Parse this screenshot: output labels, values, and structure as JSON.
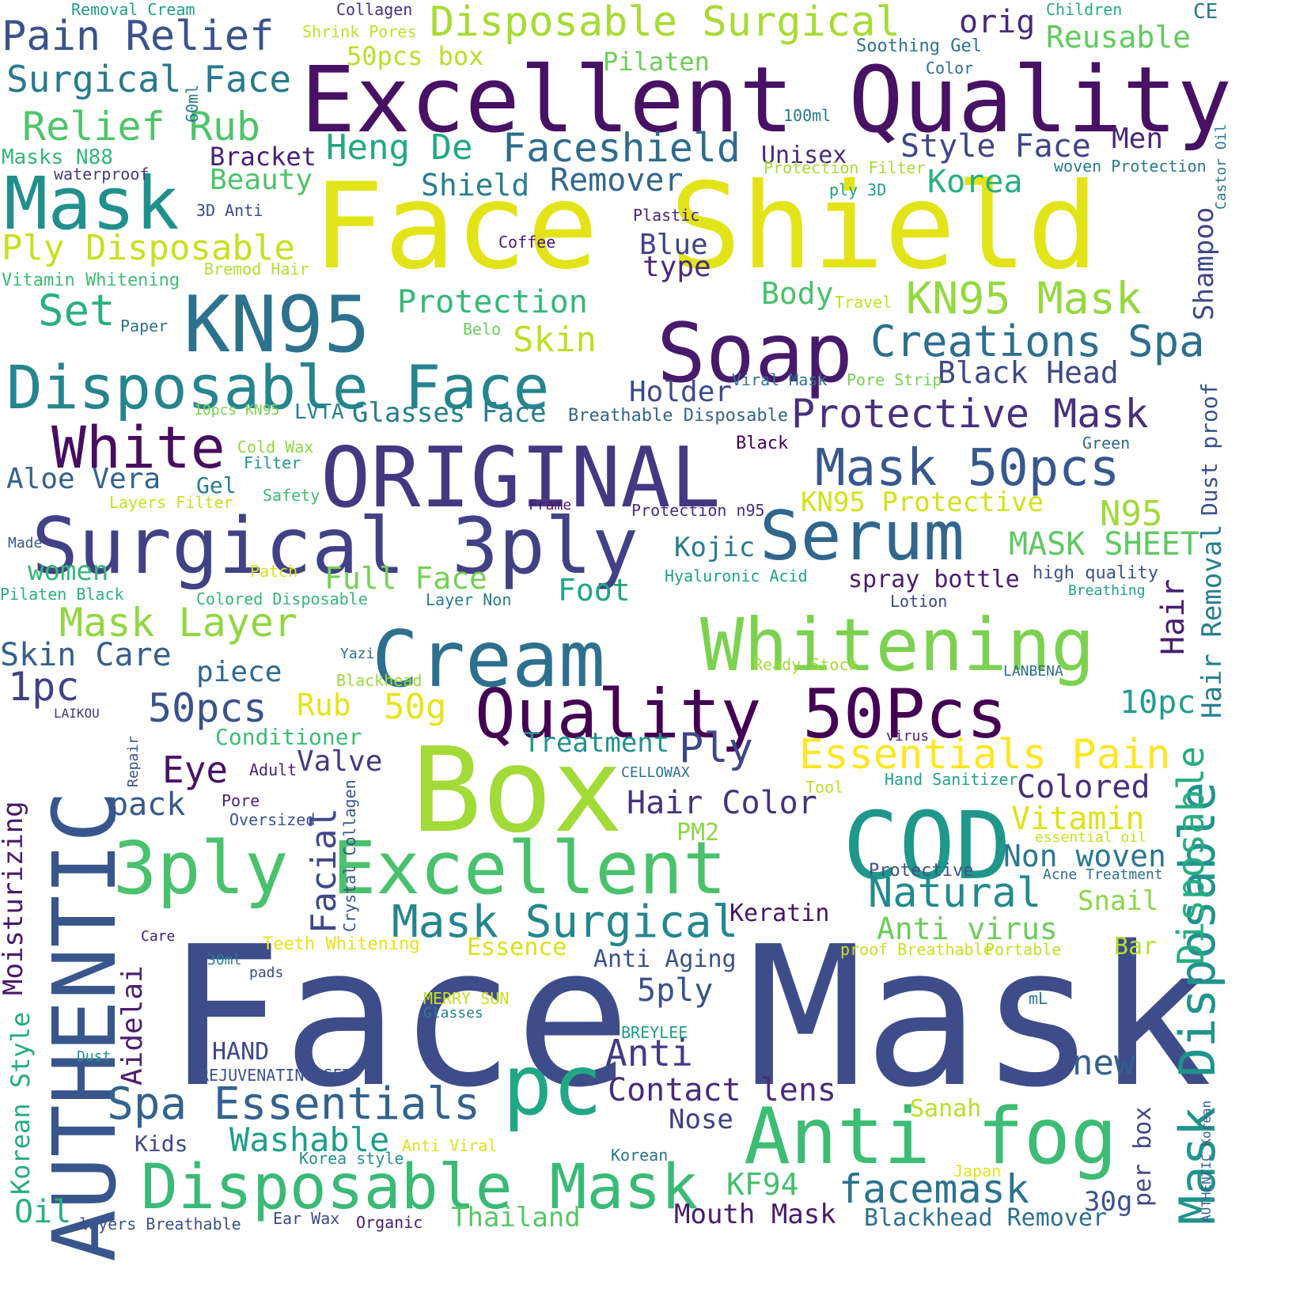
{
  "words": [
    {
      "text": "Face Mask",
      "color": "#3e4c8a"
    },
    {
      "text": "Face Shield",
      "color": "#e2e418"
    },
    {
      "text": "Excellent Quality",
      "color": "#471164"
    },
    {
      "text": "AUTHENTIC",
      "color": "#39568c"
    },
    {
      "text": "Box",
      "color": "#a2da37"
    },
    {
      "text": "ORIGINAL",
      "color": "#453882"
    },
    {
      "text": "Surgical 3ply",
      "color": "#424186"
    },
    {
      "text": "Soap",
      "color": "#481a6c"
    },
    {
      "text": "Cream",
      "color": "#2d708e"
    },
    {
      "text": "Whitening",
      "color": "#7cd250"
    },
    {
      "text": "KN95",
      "color": "#2c728e"
    },
    {
      "text": "Quality 50Pcs",
      "color": "#440154"
    },
    {
      "text": "COD",
      "color": "#1f978b"
    },
    {
      "text": "Mask",
      "color": "#21908d"
    },
    {
      "text": "Disposable Face",
      "color": "#25848e"
    },
    {
      "text": "3ply Excellent",
      "color": "#4ac16d"
    },
    {
      "text": "pc",
      "color": "#22a785"
    },
    {
      "text": "Anti fog",
      "color": "#3dbc74"
    },
    {
      "text": "Serum",
      "color": "#31668e"
    },
    {
      "text": "Disposable Mask",
      "color": "#3aba76"
    },
    {
      "text": "White",
      "color": "#470d60"
    },
    {
      "text": "Mask 50pcs",
      "color": "#38588c"
    },
    {
      "text": "Creations Spa",
      "color": "#2e6f8e"
    },
    {
      "text": "Pain Relief",
      "color": "#3b528b"
    },
    {
      "text": "Disposable Surgical",
      "color": "#a8db34"
    },
    {
      "text": "Protective Mask",
      "color": "#46307e"
    },
    {
      "text": "Mask Disposable",
      "color": "#20938c"
    },
    {
      "text": "Spa Essentials",
      "color": "#33638d"
    },
    {
      "text": "Mask Surgical",
      "color": "#24868e"
    },
    {
      "text": "Faceshield",
      "color": "#2f6c8e"
    },
    {
      "text": "Essentials Pain",
      "color": "#fde725"
    },
    {
      "text": "KN95 Mask",
      "color": "#95d840"
    },
    {
      "text": "Moisturizing",
      "color": "#48186a"
    },
    {
      "text": "Natural",
      "color": "#238a8d"
    },
    {
      "text": "Surgical Face",
      "color": "#29798e"
    },
    {
      "text": "Relief Rub",
      "color": "#4fc46a"
    },
    {
      "text": "Heng De",
      "color": "#22a884"
    },
    {
      "text": "Mask Layer",
      "color": "#92d741"
    },
    {
      "text": "Style Face",
      "color": "#404588"
    },
    {
      "text": "Anti",
      "color": "#443a83"
    },
    {
      "text": "Ply Disposable",
      "color": "#c8e020"
    },
    {
      "text": "Facial",
      "color": "#3f4889"
    },
    {
      "text": "Korean Style",
      "color": "#25ab82"
    },
    {
      "text": "Protection",
      "color": "#35b779"
    },
    {
      "text": "Black Head",
      "color": "#3e4989"
    },
    {
      "text": "facemask",
      "color": "#2c738e"
    },
    {
      "text": "Contact lens",
      "color": "#472c7a"
    },
    {
      "text": "Remover",
      "color": "#31668e"
    },
    {
      "text": "Shield",
      "color": "#277f8e"
    },
    {
      "text": "Skin Care",
      "color": "#355f8d"
    },
    {
      "text": "Washable",
      "color": "#1f9f88"
    },
    {
      "text": "Aloe Vera",
      "color": "#33638d"
    },
    {
      "text": "Disposable",
      "color": "#27ad81"
    },
    {
      "text": "Full Face",
      "color": "#74d055"
    },
    {
      "text": "Non woven",
      "color": "#2a788e"
    },
    {
      "text": "Anti virus",
      "color": "#6ccd5a"
    },
    {
      "text": "Hair Removal",
      "color": "#277f8e"
    },
    {
      "text": "Shampoo",
      "color": "#3f4788"
    },
    {
      "text": "50pcs",
      "color": "#3b518b"
    },
    {
      "text": "Hair Color",
      "color": "#46337f"
    },
    {
      "text": "Mouth Mask",
      "color": "#481b6d"
    },
    {
      "text": "Set",
      "color": "#2ab07f"
    },
    {
      "text": "Blackhead Remover",
      "color": "#2d708e"
    },
    {
      "text": "Colored",
      "color": "#472f7d"
    },
    {
      "text": "MASK SHEET",
      "color": "#5ec962"
    },
    {
      "text": "Glasses Face",
      "color": "#287d8e"
    },
    {
      "text": "Skin",
      "color": "#bddf26"
    },
    {
      "text": "Thailand",
      "color": "#56c667"
    },
    {
      "text": "Aidelai",
      "color": "#482071"
    },
    {
      "text": "Hair",
      "color": "#481f70"
    },
    {
      "text": "Vitamin",
      "color": "#dde318"
    },
    {
      "text": "Kojic",
      "color": "#287c8e"
    },
    {
      "text": "Oil",
      "color": "#29af7f"
    },
    {
      "text": "KN95 Protective",
      "color": "#d2e21b"
    },
    {
      "text": "Eye",
      "color": "#471365"
    },
    {
      "text": "Holder",
      "color": "#3e4a89"
    },
    {
      "text": "N95",
      "color": "#a0da39"
    },
    {
      "text": "1pc",
      "color": "#424186"
    },
    {
      "text": "Dust proof",
      "color": "#3b528b"
    },
    {
      "text": "Beauty",
      "color": "#4ec36b"
    },
    {
      "text": "Treatment",
      "color": "#21918c"
    },
    {
      "text": "pack",
      "color": "#38598c"
    },
    {
      "text": "Blue",
      "color": "#414487"
    },
    {
      "text": "type",
      "color": "#472a7a"
    },
    {
      "text": "10pc",
      "color": "#1f9e89"
    },
    {
      "text": "5ply",
      "color": "#3b528b"
    },
    {
      "text": "new",
      "color": "#34608d"
    },
    {
      "text": "Ply",
      "color": "#3f4788"
    },
    {
      "text": "KF94",
      "color": "#44bf70"
    },
    {
      "text": "Valve",
      "color": "#443983"
    },
    {
      "text": "Body",
      "color": "#4ac16d"
    },
    {
      "text": "Men",
      "color": "#482878"
    },
    {
      "text": "Rub",
      "color": "#e5e419"
    },
    {
      "text": "50g",
      "color": "#e7e419"
    },
    {
      "text": "Snail",
      "color": "#8bd646"
    },
    {
      "text": "Foot",
      "color": "#20a486"
    },
    {
      "text": "Korea",
      "color": "#29af7f"
    },
    {
      "text": "Bracket",
      "color": "#482173"
    },
    {
      "text": "women",
      "color": "#35b779"
    },
    {
      "text": "Reusable",
      "color": "#60ca60"
    },
    {
      "text": "Nose",
      "color": "#423f85"
    },
    {
      "text": "Anti Aging",
      "color": "#3a538b"
    },
    {
      "text": "piece",
      "color": "#31688e"
    },
    {
      "text": "Kids",
      "color": "#3e4a89"
    },
    {
      "text": "per box",
      "color": "#3f4788"
    },
    {
      "text": "30g",
      "color": "#3b528b"
    },
    {
      "text": "orig",
      "color": "#472a7a"
    },
    {
      "text": "HAND",
      "color": "#3e4989"
    },
    {
      "text": "spray bottle",
      "color": "#481d6f"
    },
    {
      "text": "Keratin",
      "color": "#481467"
    },
    {
      "text": "50pcs box",
      "color": "#bade28"
    },
    {
      "text": "Conditioner",
      "color": "#3dbc74"
    },
    {
      "text": "Essence",
      "color": "#d8e219"
    },
    {
      "text": "PM2",
      "color": "#8bd646"
    },
    {
      "text": "LVTA",
      "color": "#25848e"
    },
    {
      "text": "Unisex",
      "color": "#472c7a"
    },
    {
      "text": "Gel",
      "color": "#287d8e"
    },
    {
      "text": "Bar",
      "color": "#b5de2b"
    },
    {
      "text": "Pilaten",
      "color": "#6ece58"
    },
    {
      "text": "Crystal Collagen",
      "color": "#3b528b"
    },
    {
      "text": "Removal Cream",
      "color": "#1f9f88"
    },
    {
      "text": "Collagen",
      "color": "#46327e"
    },
    {
      "text": "Shrink Pores",
      "color": "#c0df25"
    },
    {
      "text": "Children",
      "color": "#26ad81"
    },
    {
      "text": "CE",
      "color": "#2a768e"
    },
    {
      "text": "Soothing Gel",
      "color": "#2d718e"
    },
    {
      "text": "Color",
      "color": "#2e6e8e"
    },
    {
      "text": "60ml",
      "color": "#2a788e"
    },
    {
      "text": "100ml",
      "color": "#2a768e"
    },
    {
      "text": "Castor Oil",
      "color": "#2a788e"
    },
    {
      "text": "Masks N88",
      "color": "#34b679"
    },
    {
      "text": "waterproof",
      "color": "#443983"
    },
    {
      "text": "Protection Filter",
      "color": "#a8db34"
    },
    {
      "text": "woven Protection",
      "color": "#2a788e"
    },
    {
      "text": "3D Anti",
      "color": "#3e4a89"
    },
    {
      "text": "ply 3D",
      "color": "#1fa188"
    },
    {
      "text": "Plastic",
      "color": "#482576"
    },
    {
      "text": "Coffee",
      "color": "#481b6d"
    },
    {
      "text": "Bremod Hair",
      "color": "#b5de2b"
    },
    {
      "text": "Vitamin Whitening",
      "color": "#3dbc74"
    },
    {
      "text": "Travel",
      "color": "#c2df23"
    },
    {
      "text": "Paper",
      "color": "#2c718e"
    },
    {
      "text": "Belo",
      "color": "#6ccd5a"
    },
    {
      "text": "Viral Mask",
      "color": "#2c738e"
    },
    {
      "text": "Pore Strip",
      "color": "#75d054"
    },
    {
      "text": "10pcs KN95",
      "color": "#7ad151"
    },
    {
      "text": "Breathable Disposable",
      "color": "#33638d"
    },
    {
      "text": "Cold Wax",
      "color": "#8fd744"
    },
    {
      "text": "Filter",
      "color": "#1f958b"
    },
    {
      "text": "Black",
      "color": "#440154"
    },
    {
      "text": "Green",
      "color": "#31688e"
    },
    {
      "text": "Layers Filter",
      "color": "#c8e020"
    },
    {
      "text": "Safety",
      "color": "#3bbb75"
    },
    {
      "text": "Frame",
      "color": "#481769"
    },
    {
      "text": "Protection n95",
      "color": "#46307e"
    },
    {
      "text": "Made",
      "color": "#39568c"
    },
    {
      "text": "Patch",
      "color": "#d5e21a"
    },
    {
      "text": "Hyaluronic Acid",
      "color": "#1fa188"
    },
    {
      "text": "high quality",
      "color": "#3b528b"
    },
    {
      "text": "Pilaten Black",
      "color": "#2ab07f"
    },
    {
      "text": "Colored Disposable",
      "color": "#35b779"
    },
    {
      "text": "Layer Non",
      "color": "#287d8e"
    },
    {
      "text": "Lotion",
      "color": "#404688"
    },
    {
      "text": "Breathing",
      "color": "#1fa188"
    },
    {
      "text": "Yazi",
      "color": "#2d708e"
    },
    {
      "text": "Ready Stock",
      "color": "#a5db36"
    },
    {
      "text": "Blackhead",
      "color": "#9dd93b"
    },
    {
      "text": "LANBENA",
      "color": "#2e6d8e"
    },
    {
      "text": "LAIKOU",
      "color": "#453882"
    },
    {
      "text": "Repair",
      "color": "#3b528b"
    },
    {
      "text": "virus",
      "color": "#481d6f"
    },
    {
      "text": "Adult",
      "color": "#482677"
    },
    {
      "text": "CELLOWAX",
      "color": "#2c718e"
    },
    {
      "text": "Hand Sanitizer",
      "color": "#1fa188"
    },
    {
      "text": "Tool",
      "color": "#c2df23"
    },
    {
      "text": "Pore",
      "color": "#482374"
    },
    {
      "text": "Oversized",
      "color": "#3b528b"
    },
    {
      "text": "essential oil",
      "color": "#c8e020"
    },
    {
      "text": "Protective",
      "color": "#3b528b"
    },
    {
      "text": "Acne Treatment",
      "color": "#2c718e"
    },
    {
      "text": "Care",
      "color": "#481b6d"
    },
    {
      "text": "Teeth Whitening",
      "color": "#e5e419"
    },
    {
      "text": "30ml",
      "color": "#287d8e"
    },
    {
      "text": "pads",
      "color": "#3e4c8a"
    },
    {
      "text": "proof Breathable",
      "color": "#cae11f"
    },
    {
      "text": "Portable",
      "color": "#c2df23"
    },
    {
      "text": "MERRY SUN",
      "color": "#c8e020"
    },
    {
      "text": "Glasses",
      "color": "#26828e"
    },
    {
      "text": "mL",
      "color": "#2a788e"
    },
    {
      "text": "BREYLEE",
      "color": "#1f9e89"
    },
    {
      "text": "REJUVENATING SET",
      "color": "#3b528b"
    },
    {
      "text": "Dust",
      "color": "#21918c"
    },
    {
      "text": "Sanah",
      "color": "#bade28"
    },
    {
      "text": "Anti Viral",
      "color": "#dde318"
    },
    {
      "text": "Korean",
      "color": "#2c728e"
    },
    {
      "text": "Korea style",
      "color": "#21918c"
    },
    {
      "text": "Japan",
      "color": "#e5e419"
    },
    {
      "text": "AUTHENTIC Korean",
      "color": "#355f8d"
    },
    {
      "text": "layers Breathable",
      "color": "#3b528b"
    },
    {
      "text": "Ear Wax",
      "color": "#3e4a89"
    },
    {
      "text": "Organic",
      "color": "#481d6f"
    }
  ]
}
